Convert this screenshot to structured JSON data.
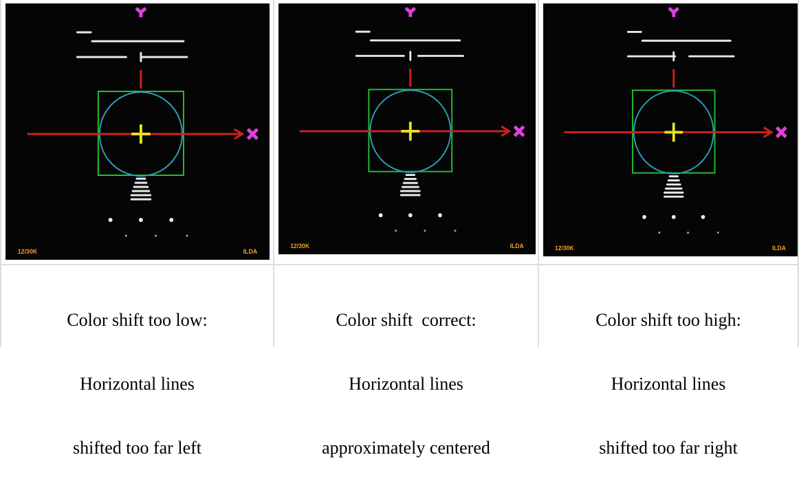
{
  "table": {
    "cells": [
      {
        "image": {
          "corner_left": "12/30K",
          "corner_right": "ILDA"
        },
        "caption": [
          "Color shift too low:",
          "Horizontal lines",
          "shifted too far left"
        ]
      },
      {
        "image": {
          "corner_left": "12/30K",
          "corner_right": "ILDA"
        },
        "caption": [
          "Color shift  correct:",
          "Horizontal lines",
          "approximately centered"
        ]
      },
      {
        "image": {
          "corner_left": "12/30K",
          "corner_right": "ILDA"
        },
        "caption": [
          "Color shift too high:",
          "Horizontal lines",
          "shifted too far right"
        ]
      }
    ]
  }
}
